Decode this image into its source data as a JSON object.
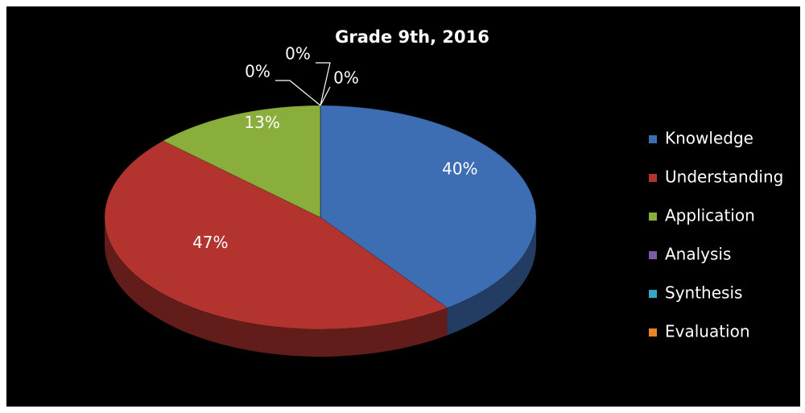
{
  "chart_data": {
    "type": "pie",
    "title": "Grade 9th, 2016",
    "categories": [
      "Knowledge",
      "Understanding",
      "Application",
      "Analysis",
      "Synthesis",
      "Evaluation"
    ],
    "values": [
      40,
      47,
      13,
      0,
      0,
      0
    ],
    "value_labels": [
      "40%",
      "47%",
      "13%",
      "0%",
      "0%",
      "0%"
    ],
    "colors": [
      "#3d6db3",
      "#b3342f",
      "#8aae3b",
      "#7a5ba5",
      "#37a6c2",
      "#e8842a"
    ],
    "legend": "right"
  }
}
